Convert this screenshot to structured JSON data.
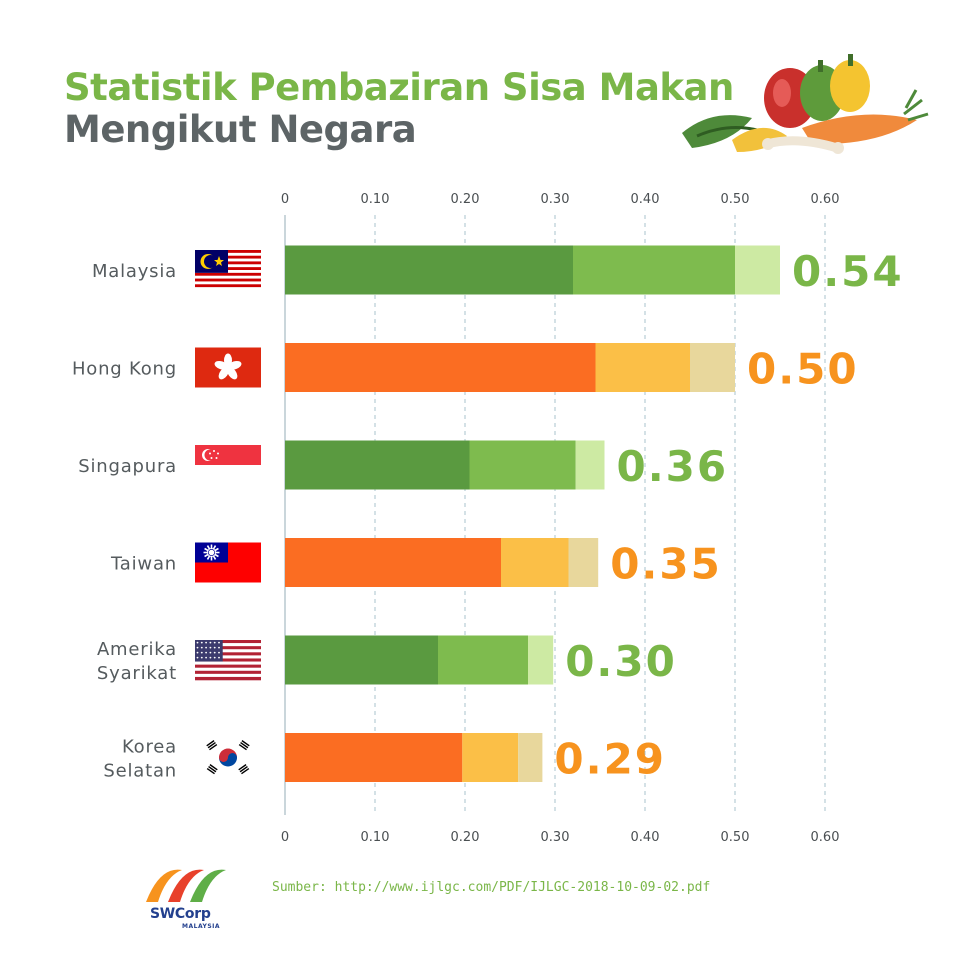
{
  "title": {
    "line1": "Statistik Pembaziran Sisa Makan",
    "line2": "Mengikut Negara"
  },
  "colors": {
    "green_dark": "#5a9a40",
    "green_mid": "#7ebb4e",
    "green_light": "#cdeaa3",
    "orange_dark": "#fb6d22",
    "orange_mid": "#fbbf47",
    "orange_light": "#e8d79c",
    "label_green": "#7ab648",
    "label_orange": "#f7931e"
  },
  "chart_data": {
    "type": "bar",
    "orientation": "horizontal",
    "stacked": true,
    "categories": [
      "Malaysia",
      "Hong Kong",
      "Singapura",
      "Taiwan",
      "Amerika Syarikat",
      "Korea Selatan"
    ],
    "category_lines": [
      [
        "Malaysia"
      ],
      [
        "Hong Kong"
      ],
      [
        "Singapura"
      ],
      [
        "Taiwan"
      ],
      [
        "Amerika",
        "Syarikat"
      ],
      [
        "Korea",
        "Selatan"
      ]
    ],
    "values": [
      0.54,
      0.5,
      0.36,
      0.35,
      0.3,
      0.29
    ],
    "value_labels": [
      "0.54",
      "0.50",
      "0.36",
      "0.35",
      "0.30",
      "0.29"
    ],
    "segments": [
      [
        0.32,
        0.18,
        0.05
      ],
      [
        0.345,
        0.105,
        0.05
      ],
      [
        0.205,
        0.118,
        0.032
      ],
      [
        0.24,
        0.075,
        0.033
      ],
      [
        0.17,
        0.1,
        0.028
      ],
      [
        0.197,
        0.062,
        0.027
      ]
    ],
    "bar_palette": [
      "green",
      "orange",
      "green",
      "orange",
      "green",
      "orange"
    ],
    "xlim": [
      0,
      0.6
    ],
    "xticks": [
      "0",
      "0.10",
      "0.20",
      "0.30",
      "0.40",
      "0.50",
      "0.60"
    ],
    "tick_positions": "top-and-bottom",
    "grid": true,
    "flags": [
      "malaysia-flag-icon",
      "hong-kong-flag-icon",
      "singapore-flag-icon",
      "taiwan-flag-icon",
      "usa-flag-icon",
      "south-korea-flag-icon"
    ]
  },
  "source": "Sumber: http://www.ijlgc.com/PDF/IJLGC-2018-10-09-02.pdf",
  "logo": {
    "name": "SWCorp",
    "sub": "MALAYSIA"
  }
}
